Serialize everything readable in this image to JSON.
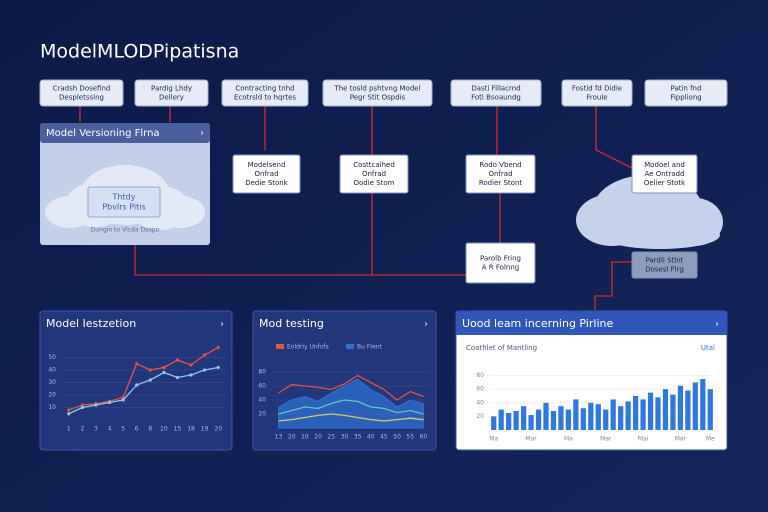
{
  "header": {
    "title": "ModelMLODPipatisna"
  },
  "top_nodes": [
    {
      "lines": [
        "Cradsh Dosefind",
        "Despletssing"
      ]
    },
    {
      "lines": [
        "Pardig Lhdy",
        "Dellery"
      ]
    },
    {
      "lines": [
        "Contracting tnhd",
        "Ecotrsld to hqrtes"
      ]
    },
    {
      "lines": [
        "The tosld pshtvng Model",
        "Pegr Stit Ospdis"
      ]
    },
    {
      "lines": [
        "Dasti Fillacrnd",
        "Fotl Bsoaundg"
      ]
    },
    {
      "lines": [
        "Fostid fd Didie",
        "Froule"
      ]
    },
    {
      "lines": [
        "Patin fnd",
        "Fippliong"
      ]
    }
  ],
  "mid_nodes": [
    {
      "lines": [
        "Modelsend",
        "Onfrad",
        "Dedie Stonk"
      ]
    },
    {
      "lines": [
        "Costtcaihed",
        "Onfrad",
        "Oodie Stom"
      ]
    },
    {
      "lines": [
        "Rodo Vbend",
        "Onfrad",
        "Rodier Stont"
      ]
    },
    {
      "lines": [
        "Modoel and",
        "Ae Ontradd",
        "Oelier Stotk"
      ]
    },
    {
      "lines": [
        "Parolb Fring",
        "A R Folnng"
      ]
    },
    {
      "lines": [
        "Pardli Stlnt",
        "Dosesl Flrg"
      ]
    }
  ],
  "version_panel": {
    "title": "Model Versioning Flrna",
    "inner": [
      "Thtdy",
      "Pbvlrs Pitis"
    ],
    "footer": "Dungin to Vlcda Dsapo"
  },
  "chart_data": [
    {
      "type": "line",
      "title": "Model Iestzetion",
      "categories": [
        "1",
        "2",
        "3",
        "4",
        "5",
        "6",
        "8",
        "10",
        "15",
        "18",
        "19",
        "20"
      ],
      "ylim": [
        0,
        60
      ],
      "yticks": [
        10,
        20,
        30,
        40,
        50
      ],
      "grid": true,
      "series": [
        {
          "color": "#e0553f",
          "values": [
            8,
            12,
            13,
            15,
            18,
            45,
            40,
            42,
            48,
            44,
            52,
            58
          ]
        },
        {
          "color": "#8fc8e8",
          "values": [
            5,
            10,
            12,
            14,
            16,
            28,
            32,
            38,
            34,
            36,
            40,
            42
          ]
        }
      ]
    },
    {
      "type": "area",
      "title": "Mod testing",
      "categories": [
        "13",
        "20",
        "10",
        "20",
        "25",
        "30",
        "35",
        "40",
        "45",
        "50",
        "55",
        "60"
      ],
      "ylim": [
        0,
        100
      ],
      "yticks": [
        20,
        40,
        60,
        80
      ],
      "grid": true,
      "series": [
        {
          "name": "Eoldriy Unfofs",
          "color": "#e0553f",
          "values": [
            50,
            62,
            60,
            58,
            55,
            63,
            75,
            65,
            55,
            40,
            52,
            45
          ]
        },
        {
          "name": "Bu Flent",
          "color": "#2f6fd0",
          "area": true,
          "values": [
            30,
            40,
            45,
            38,
            50,
            60,
            70,
            55,
            45,
            30,
            40,
            35
          ]
        },
        {
          "color": "#5fc7c0",
          "values": [
            20,
            25,
            30,
            28,
            35,
            40,
            38,
            30,
            28,
            22,
            25,
            20
          ]
        },
        {
          "color": "#d8c860",
          "values": [
            10,
            12,
            15,
            18,
            20,
            18,
            15,
            12,
            10,
            12,
            14,
            12
          ]
        }
      ]
    },
    {
      "type": "bar",
      "title": "Uood leam incerning Pirline",
      "subtitle": "Coathlet of Mantling",
      "link": "Utal",
      "categories": [
        "Ma",
        null,
        null,
        null,
        null,
        "Mar",
        null,
        null,
        null,
        null,
        "Ma",
        null,
        null,
        null,
        null,
        "Mar",
        null,
        null,
        null,
        null,
        "Mai",
        null,
        null,
        null,
        null,
        "Mar",
        null,
        null,
        null,
        "Me"
      ],
      "ylim": [
        0,
        100
      ],
      "yticks": [
        20,
        40,
        60,
        80
      ],
      "grid": true,
      "color": "#2f78e0",
      "values": [
        20,
        30,
        25,
        28,
        35,
        22,
        30,
        40,
        28,
        35,
        30,
        45,
        32,
        40,
        38,
        30,
        45,
        35,
        42,
        50,
        45,
        55,
        48,
        60,
        52,
        65,
        58,
        70,
        75,
        60
      ]
    }
  ]
}
